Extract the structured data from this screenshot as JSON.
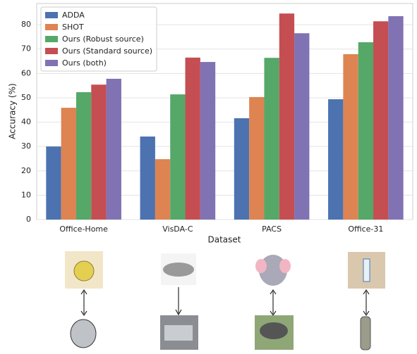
{
  "chart_data": {
    "type": "bar",
    "xlabel": "Dataset",
    "ylabel": "Accuracy (%)",
    "categories": [
      "Office-Home",
      "VisDA-C",
      "PACS",
      "Office-31"
    ],
    "series": [
      {
        "name": "ADDA",
        "color": "#4c72b0",
        "values": [
          30.0,
          34.1,
          41.6,
          49.4
        ]
      },
      {
        "name": "SHOT",
        "color": "#dd8452",
        "values": [
          45.9,
          24.8,
          50.3,
          67.9
        ]
      },
      {
        "name": "Ours (Robust source)",
        "color": "#55a868",
        "values": [
          52.3,
          51.4,
          66.4,
          72.8
        ]
      },
      {
        "name": "Ours (Standard source)",
        "color": "#c44e52",
        "values": [
          55.4,
          66.5,
          84.6,
          81.4
        ]
      },
      {
        "name": "Ours (both)",
        "color": "#8172b3",
        "values": [
          57.8,
          64.7,
          76.5,
          83.5
        ]
      }
    ],
    "ylim": [
      0,
      88.7
    ],
    "yticks": [
      0,
      10,
      20,
      30,
      40,
      50,
      60,
      70,
      80
    ],
    "grid": true,
    "legend": "upper-left"
  }
}
